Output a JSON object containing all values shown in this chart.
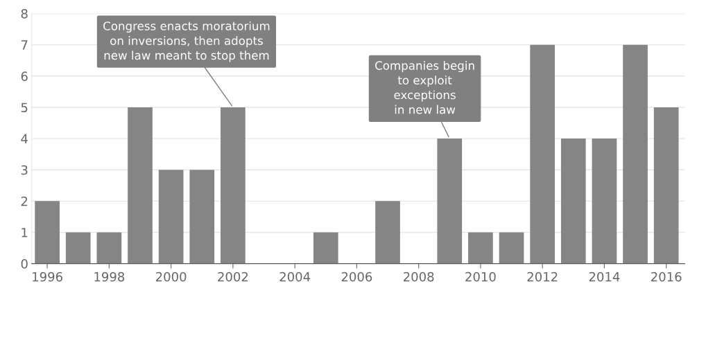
{
  "chart_data": {
    "type": "bar",
    "x": [
      1996,
      1997,
      1998,
      1999,
      2000,
      2001,
      2002,
      2003,
      2004,
      2005,
      2006,
      2007,
      2008,
      2009,
      2010,
      2011,
      2012,
      2013,
      2014,
      2015,
      2016
    ],
    "values": [
      2,
      1,
      1,
      5,
      3,
      3,
      5,
      0,
      0,
      1,
      0,
      2,
      0,
      4,
      1,
      1,
      7,
      4,
      4,
      7,
      5
    ],
    "color": "#858585",
    "xlim": [
      1995.5,
      2016.6
    ],
    "xticks": [
      1996,
      1998,
      2000,
      2002,
      2004,
      2006,
      2008,
      2010,
      2012,
      2014,
      2016
    ],
    "ylim": [
      0,
      8
    ],
    "yticks": [
      0,
      1,
      2,
      3,
      4,
      5,
      6,
      7,
      8
    ],
    "grid": "y",
    "annotations": [
      {
        "text": "Congress enacts moratorium\non inversions, then adopts\nnew law meant to stop them",
        "x": 2002,
        "y": 5
      },
      {
        "text": "Companies begin\nto exploit\nexceptions\nin new law",
        "x": 2009,
        "y": 4
      }
    ]
  }
}
